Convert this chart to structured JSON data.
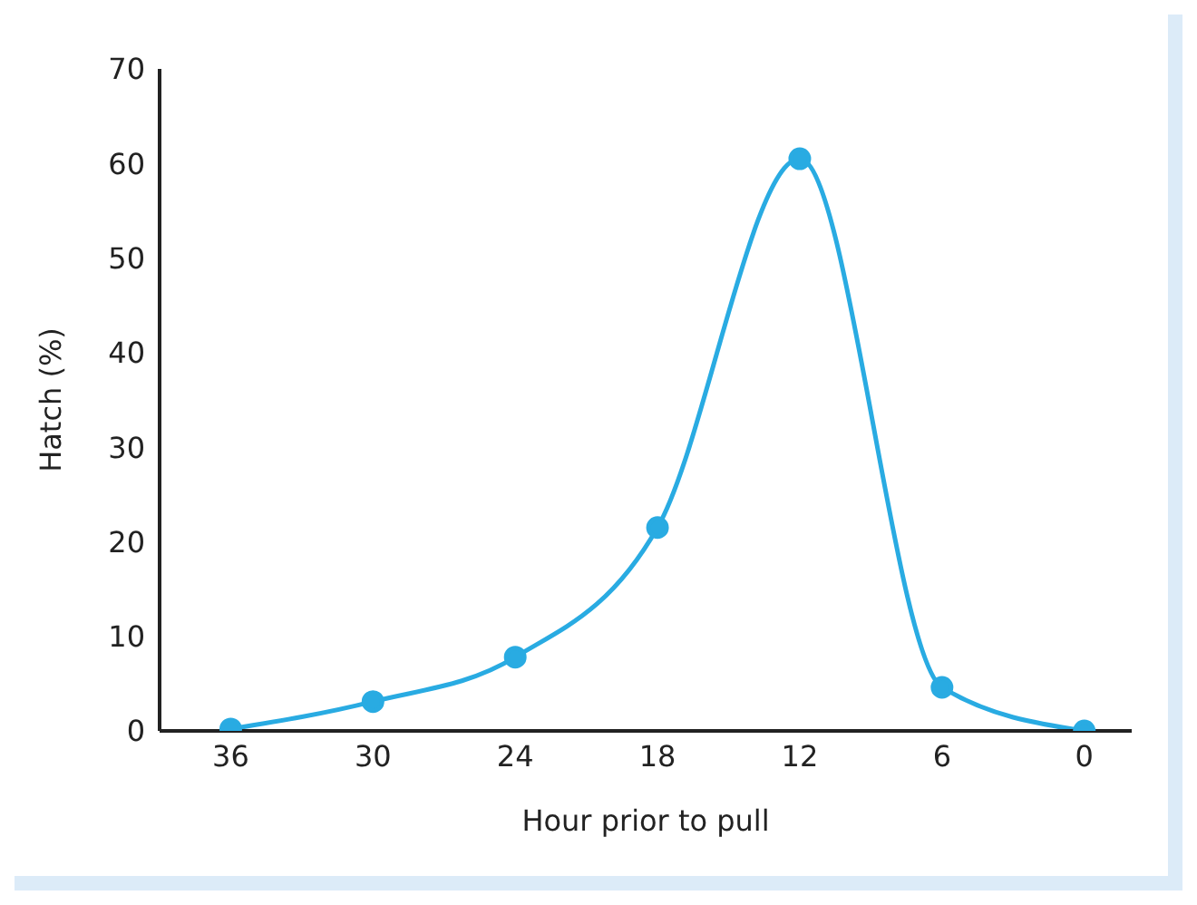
{
  "chart_data": {
    "type": "line",
    "xlabel": "Hour prior to pull",
    "ylabel": "Hatch (%)",
    "x": [
      36,
      30,
      24,
      18,
      12,
      6,
      0
    ],
    "series": [
      {
        "color": "#29abe2",
        "values": [
          0.2,
          3.1,
          7.8,
          21.5,
          60.5,
          4.6,
          0
        ]
      }
    ],
    "xlim": [
      39,
      -2
    ],
    "xticks": [
      36,
      30,
      24,
      18,
      12,
      6,
      0
    ],
    "ylim": [
      0,
      70
    ],
    "yticks": [
      0,
      10,
      20,
      30,
      40,
      50,
      60,
      70
    ],
    "marker": "circle",
    "line_style": "solid",
    "grid": false,
    "legend": false
  }
}
